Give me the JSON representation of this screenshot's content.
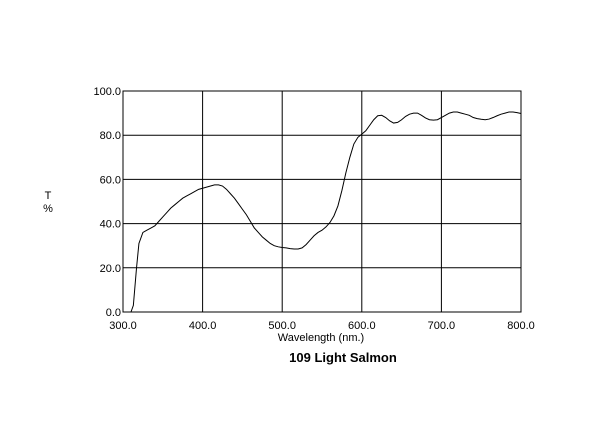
{
  "chart_data": {
    "type": "line",
    "title": "109 Light Salmon",
    "xlabel": "Wavelength (nm.)",
    "ylabel_lines": [
      "T",
      "%"
    ],
    "xlim": [
      300,
      800
    ],
    "ylim": [
      0,
      100
    ],
    "grid": true,
    "x_ticks": [
      300,
      400,
      500,
      600,
      700,
      800
    ],
    "y_ticks": [
      0,
      20,
      40,
      60,
      80,
      100
    ],
    "x_tick_labels": [
      "300.0",
      "400.0",
      "500.0",
      "600.0",
      "700.0",
      "800.0"
    ],
    "y_tick_labels": [
      "0.0",
      "20.0",
      "40.0",
      "60.0",
      "80.0",
      "100.0"
    ],
    "series": [
      {
        "line_color": "#000000",
        "points": [
          [
            300,
            0
          ],
          [
            310,
            0
          ],
          [
            313,
            3
          ],
          [
            317,
            20
          ],
          [
            320,
            31
          ],
          [
            325,
            36
          ],
          [
            330,
            37
          ],
          [
            335,
            38
          ],
          [
            340,
            39
          ],
          [
            345,
            41
          ],
          [
            350,
            43
          ],
          [
            355,
            45
          ],
          [
            360,
            47
          ],
          [
            365,
            48.5
          ],
          [
            370,
            50
          ],
          [
            375,
            51.5
          ],
          [
            380,
            52.5
          ],
          [
            385,
            53.5
          ],
          [
            390,
            54.5
          ],
          [
            395,
            55.5
          ],
          [
            400,
            56
          ],
          [
            405,
            56.5
          ],
          [
            410,
            57
          ],
          [
            415,
            57.5
          ],
          [
            420,
            57.5
          ],
          [
            425,
            57
          ],
          [
            430,
            55.5
          ],
          [
            435,
            53.5
          ],
          [
            440,
            51.5
          ],
          [
            445,
            49
          ],
          [
            450,
            46.5
          ],
          [
            455,
            44
          ],
          [
            460,
            41
          ],
          [
            465,
            38
          ],
          [
            470,
            36
          ],
          [
            475,
            34
          ],
          [
            480,
            32.5
          ],
          [
            485,
            31
          ],
          [
            490,
            30
          ],
          [
            495,
            29.5
          ],
          [
            500,
            29.2
          ],
          [
            505,
            29
          ],
          [
            510,
            28.7
          ],
          [
            515,
            28.5
          ],
          [
            520,
            28.5
          ],
          [
            525,
            29
          ],
          [
            530,
            30.5
          ],
          [
            535,
            32.5
          ],
          [
            540,
            34.5
          ],
          [
            545,
            36
          ],
          [
            550,
            37
          ],
          [
            555,
            38.5
          ],
          [
            560,
            40.5
          ],
          [
            565,
            43.5
          ],
          [
            570,
            48
          ],
          [
            575,
            55
          ],
          [
            580,
            63
          ],
          [
            585,
            70
          ],
          [
            590,
            76
          ],
          [
            595,
            79
          ],
          [
            600,
            80.5
          ],
          [
            605,
            82
          ],
          [
            610,
            84.5
          ],
          [
            615,
            87
          ],
          [
            620,
            88.8
          ],
          [
            625,
            89
          ],
          [
            630,
            88
          ],
          [
            635,
            86.5
          ],
          [
            640,
            85.5
          ],
          [
            645,
            85.8
          ],
          [
            650,
            87
          ],
          [
            655,
            88.5
          ],
          [
            660,
            89.5
          ],
          [
            665,
            90
          ],
          [
            670,
            90
          ],
          [
            675,
            89
          ],
          [
            680,
            87.8
          ],
          [
            685,
            87
          ],
          [
            690,
            86.8
          ],
          [
            695,
            87
          ],
          [
            700,
            88
          ],
          [
            705,
            89
          ],
          [
            710,
            90
          ],
          [
            715,
            90.5
          ],
          [
            720,
            90.5
          ],
          [
            725,
            90
          ],
          [
            730,
            89.5
          ],
          [
            735,
            89
          ],
          [
            740,
            88
          ],
          [
            745,
            87.5
          ],
          [
            750,
            87.2
          ],
          [
            755,
            87
          ],
          [
            760,
            87.3
          ],
          [
            765,
            88
          ],
          [
            770,
            88.8
          ],
          [
            775,
            89.5
          ],
          [
            780,
            90
          ],
          [
            785,
            90.5
          ],
          [
            790,
            90.5
          ],
          [
            795,
            90.2
          ],
          [
            800,
            89.8
          ]
        ]
      }
    ]
  }
}
